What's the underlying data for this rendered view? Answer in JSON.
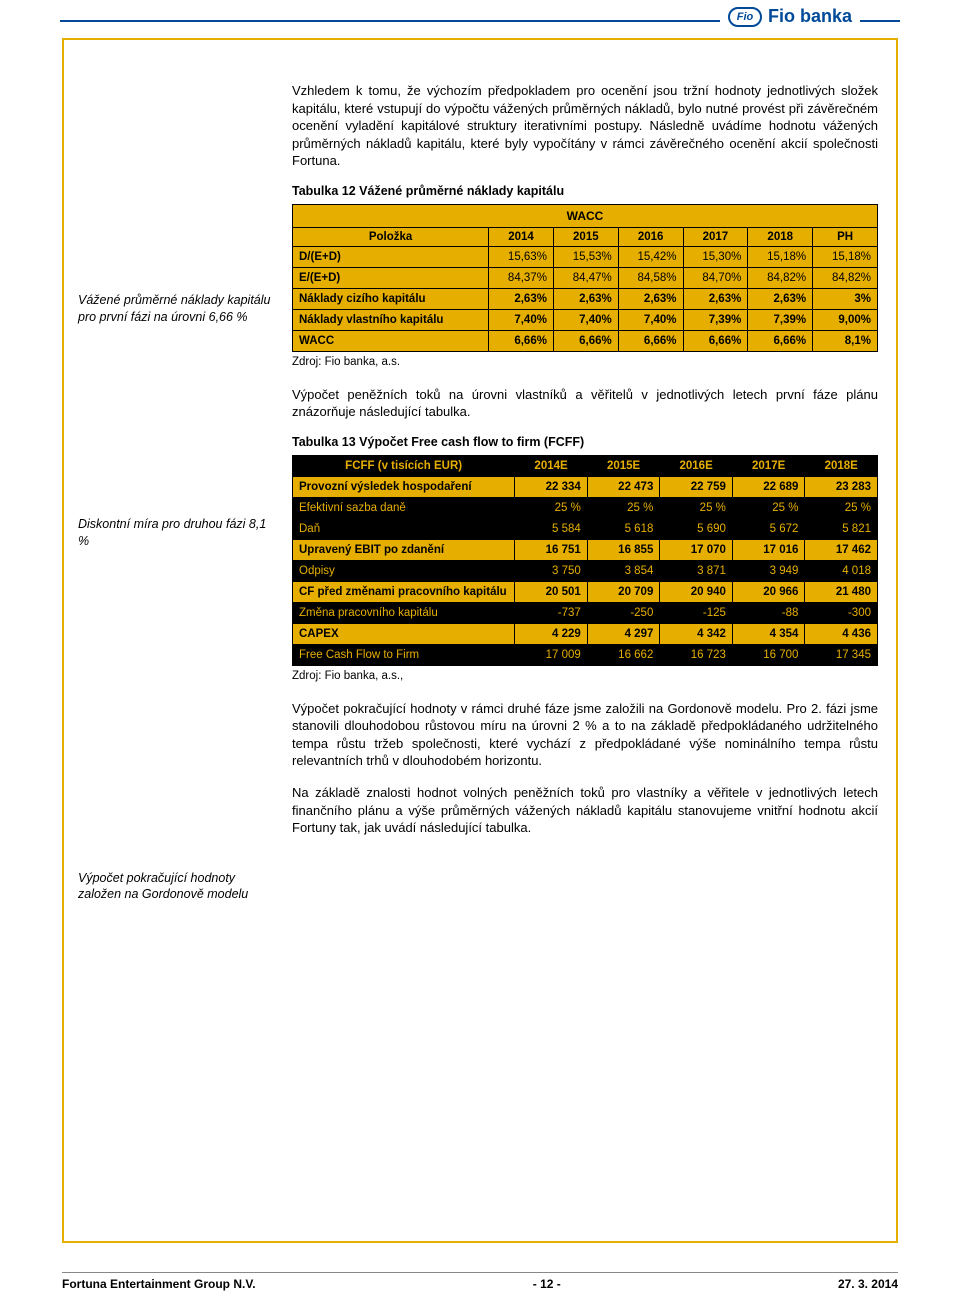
{
  "logo": {
    "mark": "Fio",
    "text": "Fio banka"
  },
  "sidebar": {
    "note1": "Vážené průměrné náklady kapitálu pro první fázi na úrovni 6,66 %",
    "note2": "Diskontní míra pro druhou fázi 8,1 %",
    "note3": "Výpočet pokračující hodnoty založen na Gordonově modelu"
  },
  "para1": "Vzhledem k tomu, že výchozím předpokladem pro ocenění jsou tržní hodnoty jednotlivých složek kapitálu, které vstupují do výpočtu vážených průměrných nákladů, bylo nutné provést při závěrečném ocenění vyladění kapitálové struktury iterativními postupy. Následně uvádíme hodnotu vážených průměrných nákladů kapitálu, které byly vypočítány v rámci závěrečného ocenění akcií společnosti Fortuna.",
  "table12": {
    "title": "Tabulka 12 Vážené průměrné náklady kapitálu",
    "wacc_header": "WACC",
    "col_item": "Položka",
    "years": [
      "2014",
      "2015",
      "2016",
      "2017",
      "2018",
      "PH"
    ],
    "rows": [
      {
        "label": "D/(E+D)",
        "cells": [
          "15,63%",
          "15,53%",
          "15,42%",
          "15,30%",
          "15,18%",
          "15,18%"
        ],
        "bold": false
      },
      {
        "label": "E/(E+D)",
        "cells": [
          "84,37%",
          "84,47%",
          "84,58%",
          "84,70%",
          "84,82%",
          "84,82%"
        ],
        "bold": false
      },
      {
        "label": "Náklady cizího kapitálu",
        "cells": [
          "2,63%",
          "2,63%",
          "2,63%",
          "2,63%",
          "2,63%",
          "3%"
        ],
        "bold": true
      },
      {
        "label": "Náklady vlastního kapitálu",
        "cells": [
          "7,40%",
          "7,40%",
          "7,40%",
          "7,39%",
          "7,39%",
          "9,00%"
        ],
        "bold": true
      },
      {
        "label": "WACC",
        "cells": [
          "6,66%",
          "6,66%",
          "6,66%",
          "6,66%",
          "6,66%",
          "8,1%"
        ],
        "bold": true
      }
    ],
    "source": "Zdroj: Fio banka, a.s."
  },
  "para2": "Výpočet peněžních toků na úrovni vlastníků a věřitelů v jednotlivých letech první fáze plánu znázorňuje následující tabulka.",
  "table13": {
    "title": "Tabulka 13 Výpočet Free cash flow to firm (FCFF)",
    "col_item": "FCFF (v tisících EUR)",
    "years": [
      "2014E",
      "2015E",
      "2016E",
      "2017E",
      "2018E"
    ],
    "rows": [
      {
        "label": "Provozní výsledek hospodaření",
        "cells": [
          "22 334",
          "22 473",
          "22 759",
          "22 689",
          "23 283"
        ],
        "style": "orange"
      },
      {
        "label": "Efektivní sazba daně",
        "cells": [
          "25 %",
          "25 %",
          "25 %",
          "25 %",
          "25 %"
        ],
        "style": "black"
      },
      {
        "label": "Daň",
        "cells": [
          "5 584",
          "5 618",
          "5 690",
          "5 672",
          "5 821"
        ],
        "style": "black"
      },
      {
        "label": "Upravený EBIT po zdanění",
        "cells": [
          "16 751",
          "16 855",
          "17 070",
          "17 016",
          "17 462"
        ],
        "style": "orange"
      },
      {
        "label": "Odpisy",
        "cells": [
          "3 750",
          "3 854",
          "3 871",
          "3 949",
          "4 018"
        ],
        "style": "black"
      },
      {
        "label": "CF před změnami pracovního kapitálu",
        "cells": [
          "20 501",
          "20 709",
          "20 940",
          "20 966",
          "21 480"
        ],
        "style": "orange"
      },
      {
        "label": "Změna pracovního kapitálu",
        "cells": [
          "-737",
          "-250",
          "-125",
          "-88",
          "-300"
        ],
        "style": "black"
      },
      {
        "label": "CAPEX",
        "cells": [
          "4 229",
          "4 297",
          "4 342",
          "4 354",
          "4 436"
        ],
        "style": "orange"
      },
      {
        "label": "Free Cash Flow to Firm",
        "cells": [
          "17 009",
          "16 662",
          "16 723",
          "16 700",
          "17 345"
        ],
        "style": "black"
      }
    ],
    "source": "Zdroj: Fio banka, a.s.,"
  },
  "para3": "Výpočet pokračující hodnoty v rámci druhé fáze jsme založili na Gordonově modelu. Pro 2. fázi jsme stanovili dlouhodobou růstovou míru na úrovni 2 % a to na základě předpokládaného udržitelného tempa růstu tržeb společnosti, které vychází z předpokládané výše nominálního tempa růstu relevantních trhů v dlouhodobém horizontu.",
  "para4": "Na základě znalosti hodnot volných peněžních toků pro vlastníky a věřitele v jednotlivých letech finančního plánu a výše průměrných vážených nákladů kapitálu stanovujeme vnitřní hodnotu akcií Fortuny tak, jak uvádí následující tabulka.",
  "footer": {
    "left": "Fortuna Entertainment Group N.V.",
    "center": "- 12 -",
    "right": "27. 3. 2014"
  }
}
